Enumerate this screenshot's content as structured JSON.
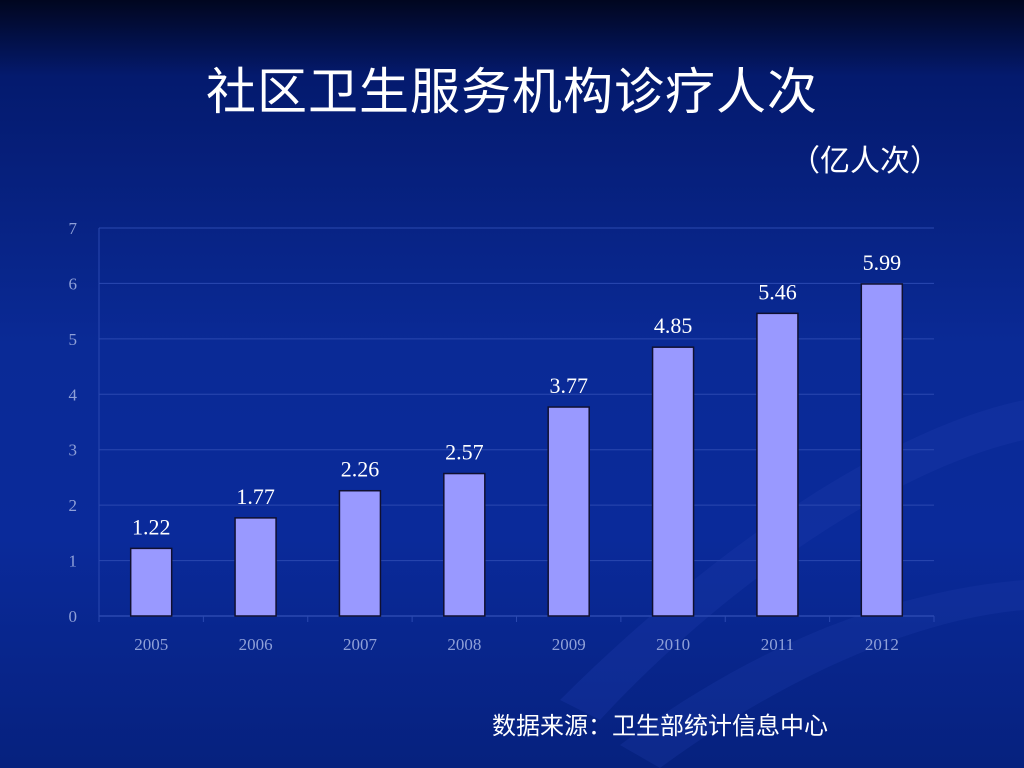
{
  "slide": {
    "title": "社区卫生服务机构诊疗人次",
    "unit": "（亿人次）",
    "source": "数据来源：卫生部统计信息中心"
  },
  "colors": {
    "bar": "#9999ff",
    "bar_edge": "#101030",
    "gridline": "#2a48b0",
    "axis_text": "#8fa0d8",
    "label_text": "#ffffff"
  },
  "chart_data": {
    "type": "bar",
    "categories": [
      "2005",
      "2006",
      "2007",
      "2008",
      "2009",
      "2010",
      "2011",
      "2012"
    ],
    "values": [
      1.22,
      1.77,
      2.26,
      2.57,
      3.77,
      4.85,
      5.46,
      5.99
    ],
    "data_labels": [
      "1.22",
      "1.77",
      "2.26",
      "2.57",
      "3.77",
      "4.85",
      "5.46",
      "5.99"
    ],
    "ylim": [
      0,
      7
    ],
    "yticks": [
      "0",
      "1",
      "2",
      "3",
      "4",
      "5",
      "6",
      "7"
    ],
    "grid": true,
    "legend": false
  }
}
